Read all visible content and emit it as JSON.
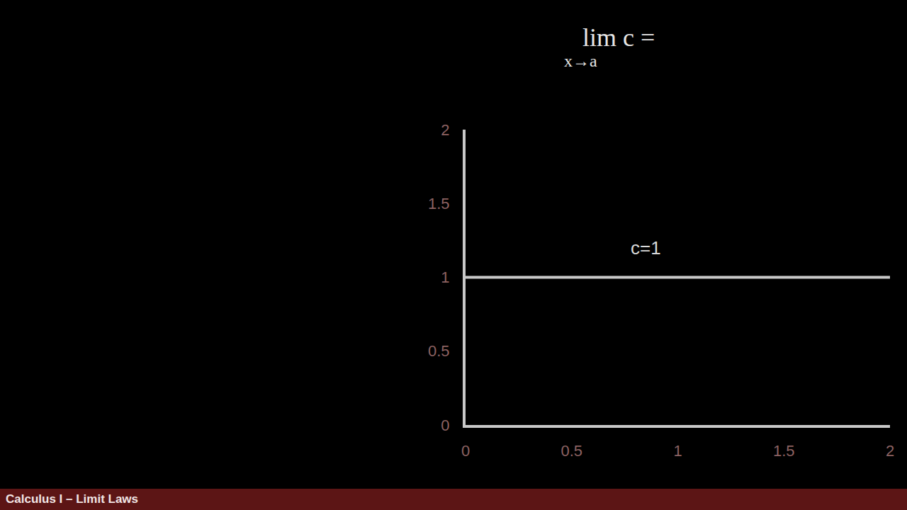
{
  "chart_data": {
    "type": "line",
    "title": "lim c =",
    "title_subscript": "x→a",
    "x": [
      0,
      2
    ],
    "values": [
      1,
      1
    ],
    "color": "#c8c8c8",
    "xlim": [
      0,
      2
    ],
    "xticks": [
      0,
      0.5,
      1,
      1.5,
      2
    ],
    "ylim": [
      0,
      2
    ],
    "yticks": [
      0,
      0.5,
      1,
      1.5,
      2
    ],
    "grid": false,
    "annotations": [
      {
        "text": "c=1",
        "x": 0.85,
        "y": 1.2
      }
    ]
  },
  "footer": "Calculus I – Limit Laws"
}
